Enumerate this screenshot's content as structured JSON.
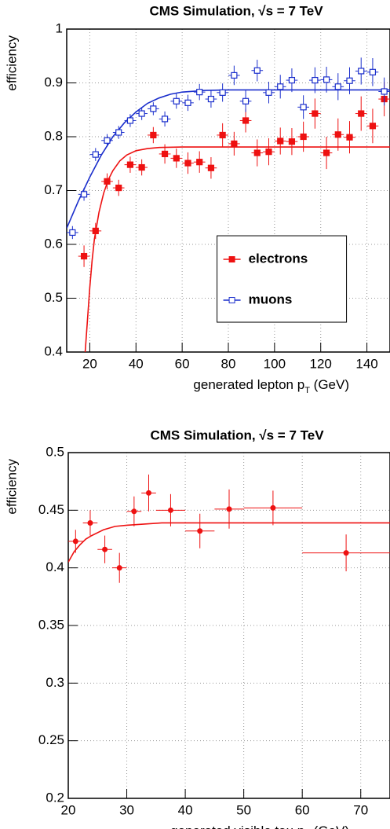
{
  "chart_data": [
    {
      "type": "scatter",
      "title": "CMS Simulation, √s = 7 TeV",
      "ylabel": "efficiency",
      "xlabel": [
        "generated lepton p",
        "T",
        " (GeV)"
      ],
      "xlim": [
        10,
        150
      ],
      "ylim": [
        0.4,
        1
      ],
      "xticks": [
        20,
        40,
        60,
        80,
        100,
        120,
        140
      ],
      "yticks": [
        0.4,
        0.5,
        0.6,
        0.7,
        0.8,
        0.9,
        1
      ],
      "grid": true,
      "legend": "lower right",
      "series": [
        {
          "name": "electrons",
          "color": "#ee1111",
          "marker": "filled",
          "x": [
            17.5,
            22.5,
            27.5,
            32.5,
            37.5,
            42.5,
            47.5,
            52.5,
            57.5,
            62.5,
            67.5,
            72.5,
            77.5,
            82.5,
            87.5,
            92.5,
            97.5,
            102.5,
            107.5,
            112.5,
            117.5,
            122.5,
            127.5,
            132.5,
            137.5,
            142.5,
            147.5
          ],
          "values": [
            0.578,
            0.625,
            0.717,
            0.705,
            0.748,
            0.743,
            0.803,
            0.768,
            0.76,
            0.751,
            0.753,
            0.742,
            0.803,
            0.787,
            0.83,
            0.77,
            0.772,
            0.792,
            0.791,
            0.8,
            0.843,
            0.77,
            0.804,
            0.799,
            0.843,
            0.82,
            0.87
          ],
          "xerr": [
            2.5,
            2.5,
            2.5,
            2.5,
            2.5,
            2.5,
            2.5,
            2.5,
            2.5,
            2.5,
            2.5,
            2.5,
            2.5,
            2.5,
            2.5,
            2.5,
            2.5,
            2.5,
            2.5,
            2.5,
            2.5,
            2.5,
            2.5,
            2.5,
            2.5,
            2.5,
            2.5
          ],
          "yerr": [
            0.02,
            0.015,
            0.015,
            0.015,
            0.015,
            0.015,
            0.015,
            0.018,
            0.018,
            0.02,
            0.02,
            0.02,
            0.022,
            0.022,
            0.022,
            0.025,
            0.025,
            0.025,
            0.025,
            0.028,
            0.028,
            0.03,
            0.03,
            0.03,
            0.032,
            0.032,
            0.032
          ],
          "fit_x": [
            18,
            19,
            20,
            21,
            22,
            24,
            26,
            28,
            30,
            33,
            36,
            40,
            45,
            50,
            60,
            80,
            100,
            150
          ],
          "fit_y": [
            0.4,
            0.46,
            0.52,
            0.57,
            0.61,
            0.66,
            0.695,
            0.72,
            0.737,
            0.755,
            0.766,
            0.774,
            0.778,
            0.78,
            0.781,
            0.781,
            0.781,
            0.781
          ]
        },
        {
          "name": "muons",
          "color": "#1a2ecc",
          "marker": "open",
          "x": [
            12.5,
            17.5,
            22.5,
            27.5,
            32.5,
            37.5,
            42.5,
            47.5,
            52.5,
            57.5,
            62.5,
            67.5,
            72.5,
            77.5,
            82.5,
            87.5,
            92.5,
            97.5,
            102.5,
            107.5,
            112.5,
            117.5,
            122.5,
            127.5,
            132.5,
            137.5,
            142.5,
            147.5
          ],
          "values": [
            0.622,
            0.693,
            0.767,
            0.793,
            0.808,
            0.83,
            0.843,
            0.852,
            0.833,
            0.866,
            0.863,
            0.883,
            0.87,
            0.882,
            0.914,
            0.866,
            0.923,
            0.882,
            0.893,
            0.905,
            0.855,
            0.905,
            0.906,
            0.893,
            0.904,
            0.922,
            0.92,
            0.884
          ],
          "xerr": [
            2.5,
            2.5,
            2.5,
            2.5,
            2.5,
            2.5,
            2.5,
            2.5,
            2.5,
            2.5,
            2.5,
            2.5,
            2.5,
            2.5,
            2.5,
            2.5,
            2.5,
            2.5,
            2.5,
            2.5,
            2.5,
            2.5,
            2.5,
            2.5,
            2.5,
            2.5,
            2.5,
            2.5
          ],
          "yerr": [
            0.012,
            0.012,
            0.012,
            0.012,
            0.012,
            0.012,
            0.012,
            0.012,
            0.014,
            0.014,
            0.015,
            0.015,
            0.016,
            0.017,
            0.018,
            0.02,
            0.02,
            0.02,
            0.022,
            0.022,
            0.022,
            0.024,
            0.024,
            0.025,
            0.025,
            0.025,
            0.026,
            0.026
          ],
          "fit_x": [
            10,
            15,
            20,
            25,
            30,
            35,
            40,
            45,
            50,
            55,
            60,
            70,
            80,
            100,
            150
          ],
          "fit_y": [
            0.63,
            0.68,
            0.725,
            0.766,
            0.8,
            0.826,
            0.846,
            0.862,
            0.872,
            0.879,
            0.883,
            0.886,
            0.887,
            0.887,
            0.887
          ]
        }
      ]
    },
    {
      "type": "scatter",
      "title": "CMS Simulation, √s = 7 TeV",
      "ylabel": "efficiency",
      "xlabel": [
        "generated visible tau p",
        "T",
        " (GeV)"
      ],
      "xlim": [
        20,
        75
      ],
      "ylim": [
        0.2,
        0.5
      ],
      "xticks": [
        20,
        30,
        40,
        50,
        60,
        70
      ],
      "yticks": [
        0.2,
        0.25,
        0.3,
        0.35,
        0.4,
        0.45,
        0.5
      ],
      "grid": true,
      "series": [
        {
          "color": "#ee1111",
          "marker": "circle",
          "x": [
            21.25,
            23.75,
            26.25,
            28.75,
            31.25,
            33.75,
            37.5,
            42.5,
            47.5,
            55,
            67.5
          ],
          "values": [
            0.423,
            0.439,
            0.416,
            0.4,
            0.449,
            0.465,
            0.45,
            0.432,
            0.451,
            0.452,
            0.413
          ],
          "xerr": [
            1.25,
            1.25,
            1.25,
            1.25,
            1.25,
            1.25,
            2.5,
            2.5,
            2.5,
            5,
            7.5
          ],
          "yerr": [
            0.01,
            0.011,
            0.012,
            0.013,
            0.013,
            0.016,
            0.014,
            0.015,
            0.017,
            0.015,
            0.016
          ],
          "fit_x": [
            20,
            21,
            22,
            23,
            24,
            26,
            28,
            30,
            33,
            36,
            40,
            50,
            75
          ],
          "fit_y": [
            0.405,
            0.414,
            0.42,
            0.425,
            0.428,
            0.433,
            0.436,
            0.437,
            0.438,
            0.439,
            0.439,
            0.439,
            0.439
          ]
        }
      ]
    }
  ]
}
